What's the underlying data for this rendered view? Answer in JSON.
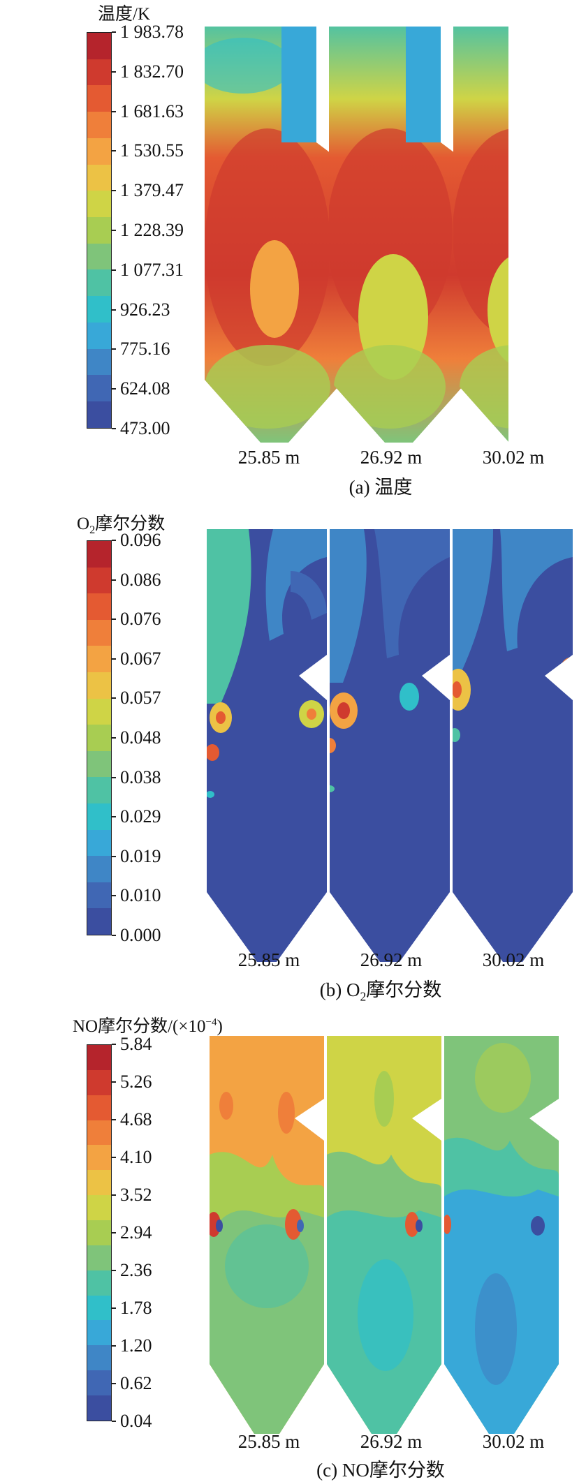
{
  "panels": [
    {
      "id": "a",
      "legend_title": "温度/K",
      "ticks": [
        "1 983.78",
        "1 832.70",
        "1 681.63",
        "1 530.55",
        "1 379.47",
        "1 228.39",
        "1 077.31",
        "926.23",
        "775.16",
        "624.08",
        "473.00"
      ],
      "positions": [
        "25.85 m",
        "26.92 m",
        "30.02 m"
      ],
      "caption": "(a) 温度"
    },
    {
      "id": "b",
      "legend_title_prefix": "O",
      "legend_title_sub": "2",
      "legend_title_suffix": "摩尔分数",
      "ticks": [
        "0.096",
        "0.086",
        "0.076",
        "0.067",
        "0.057",
        "0.048",
        "0.038",
        "0.029",
        "0.019",
        "0.010",
        "0.000"
      ],
      "positions": [
        "25.85 m",
        "26.92 m",
        "30.02 m"
      ],
      "caption_prefix": "(b) O",
      "caption_sub": "2",
      "caption_suffix": "摩尔分数"
    },
    {
      "id": "c",
      "legend_title_prefix": "NO摩尔分数/(×10",
      "legend_title_sup": "−4",
      "legend_title_suffix": ")",
      "ticks": [
        "5.84",
        "5.26",
        "4.68",
        "4.10",
        "3.52",
        "2.94",
        "2.36",
        "1.78",
        "1.20",
        "0.62",
        "0.04"
      ],
      "positions": [
        "25.85 m",
        "26.92 m",
        "30.02 m"
      ],
      "caption": "(c) NO摩尔分数"
    }
  ],
  "colormap": [
    "#3b4ea0",
    "#4067b4",
    "#3f86c6",
    "#38a8d8",
    "#30bfc9",
    "#4fc2a4",
    "#7fc47a",
    "#a8cd52",
    "#cfd446",
    "#ecc245",
    "#f3a343",
    "#ef7f3a",
    "#e45a32",
    "#cf3a2e",
    "#b5242c"
  ]
}
